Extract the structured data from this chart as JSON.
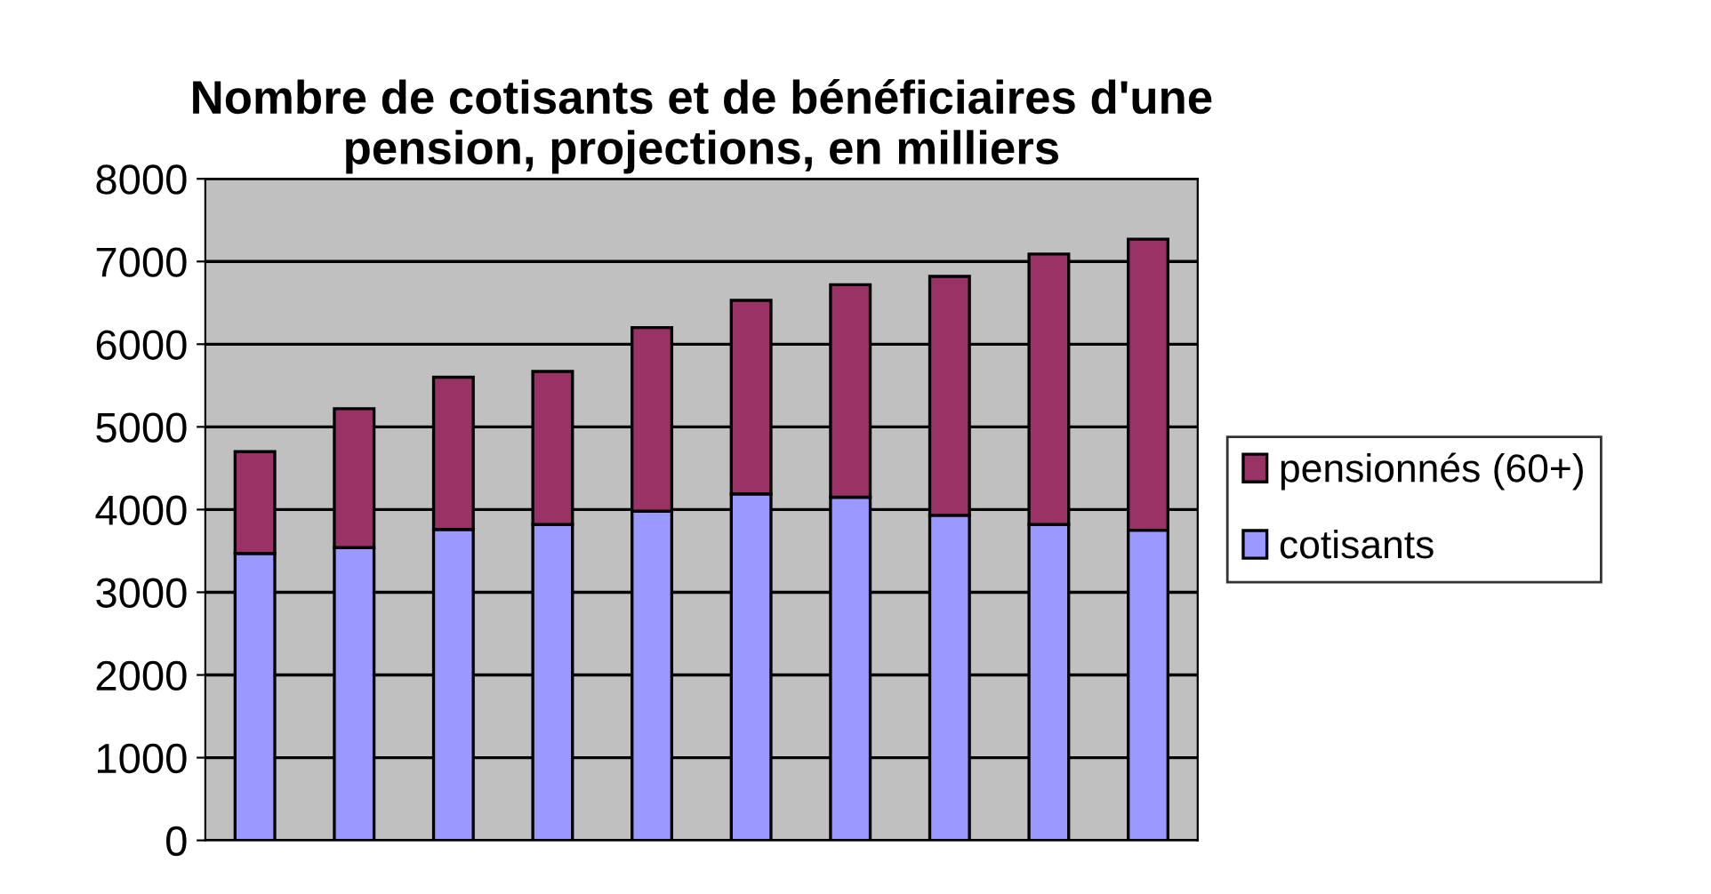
{
  "chart_data": {
    "type": "bar",
    "title": "Nombre de cotisants et de bénéficiaires d'une\npension, projections, en milliers",
    "categories": [
      null,
      null,
      null,
      null,
      null,
      null,
      null,
      null,
      null,
      null
    ],
    "stacked": true,
    "series": [
      {
        "name": "cotisants",
        "color": "#9999ff",
        "values": [
          3470,
          3540,
          3760,
          3820,
          3980,
          4190,
          4150,
          3930,
          3820,
          3750
        ]
      },
      {
        "name": "pensionnés (60+)",
        "color": "#993366",
        "values": [
          1230,
          1680,
          1840,
          1850,
          2220,
          2340,
          2570,
          2890,
          3270,
          3520
        ]
      }
    ],
    "ylim": [
      0,
      8000
    ],
    "yticks": [
      0,
      1000,
      2000,
      3000,
      4000,
      5000,
      6000,
      7000,
      8000
    ],
    "grid": "y",
    "legend": "right"
  }
}
